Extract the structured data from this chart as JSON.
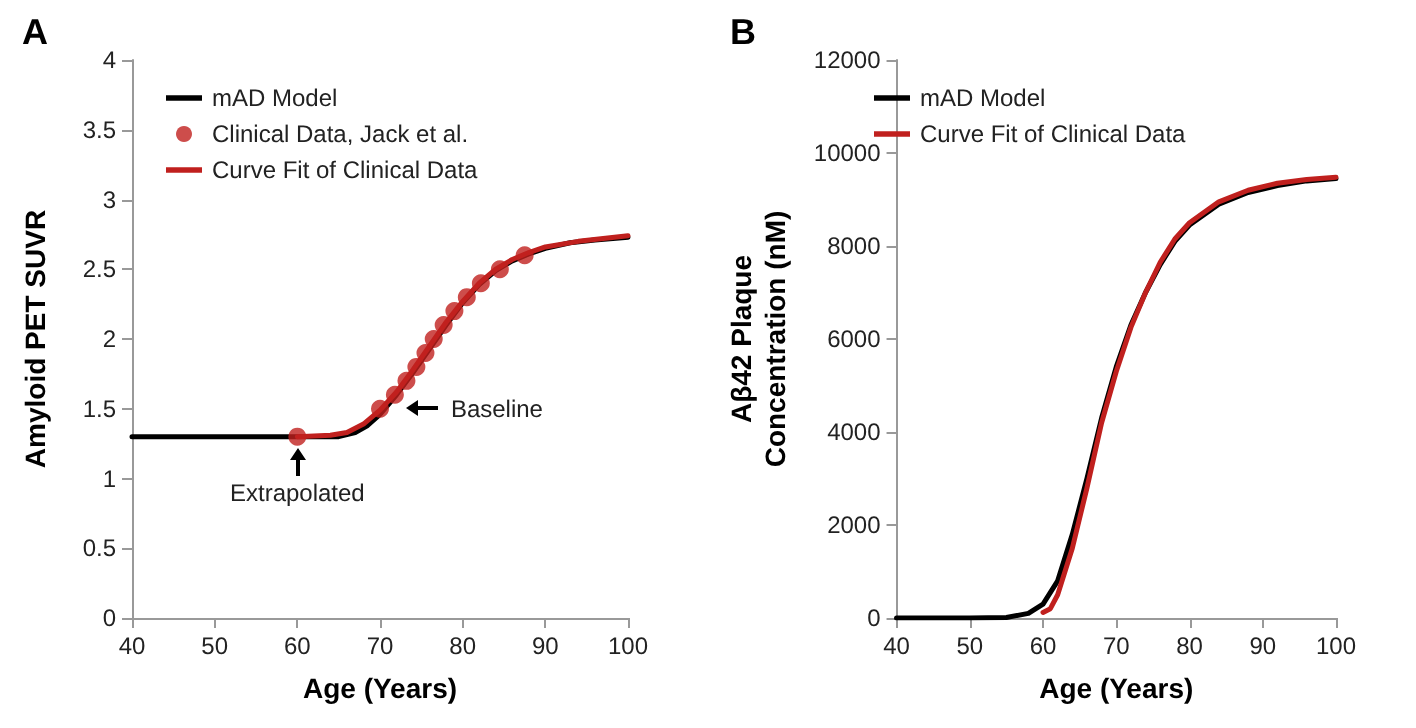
{
  "chart_data": [
    {
      "type": "line",
      "title": "A",
      "xlabel": "Age (Years)",
      "ylabel": "Amyloid PET SUVR",
      "xlim": [
        40,
        100
      ],
      "xticks": [
        40,
        50,
        60,
        70,
        80,
        90,
        100
      ],
      "ylim": [
        0,
        4
      ],
      "yticks": [
        0,
        0.5,
        1,
        1.5,
        2,
        2.5,
        3,
        3.5,
        4
      ],
      "grid": false,
      "legend": "top left",
      "marker": "none",
      "line_style": "solid",
      "series": [
        {
          "name": "mAD Model",
          "color": "#000000",
          "x": [
            40,
            50,
            60,
            65,
            67,
            68.5,
            70,
            72,
            74,
            76,
            78,
            80,
            82,
            84,
            86,
            88,
            90,
            93,
            96,
            100
          ],
          "values": [
            1.3,
            1.3,
            1.3,
            1.3,
            1.33,
            1.38,
            1.46,
            1.6,
            1.76,
            1.93,
            2.1,
            2.26,
            2.39,
            2.49,
            2.56,
            2.61,
            2.65,
            2.69,
            2.71,
            2.73
          ]
        },
        {
          "name": "Clinical Data, Jack et al.",
          "type": "scatter",
          "marker": "circle",
          "color": "#c0201e",
          "x": [
            60,
            70,
            71.8,
            73.2,
            74.4,
            75.5,
            76.5,
            77.7,
            79,
            80.5,
            82.2,
            84.5,
            87.5
          ],
          "values": [
            1.3,
            1.5,
            1.6,
            1.7,
            1.8,
            1.9,
            2.0,
            2.1,
            2.2,
            2.3,
            2.4,
            2.5,
            2.6
          ]
        },
        {
          "name": "Curve Fit of Clinical Data",
          "color": "#c0201e",
          "x": [
            60,
            64,
            66,
            68,
            70,
            72,
            74,
            76,
            78,
            80,
            82,
            84,
            86,
            88,
            90,
            94,
            100
          ],
          "values": [
            1.3,
            1.31,
            1.33,
            1.39,
            1.49,
            1.62,
            1.78,
            1.95,
            2.12,
            2.27,
            2.4,
            2.5,
            2.57,
            2.62,
            2.66,
            2.7,
            2.74
          ]
        }
      ],
      "annotations": [
        {
          "text": "Extrapolated",
          "x": 60,
          "y": 1.3
        },
        {
          "text": "Baseline",
          "x": 71.8,
          "y": 1.5
        }
      ]
    },
    {
      "type": "line",
      "title": "B",
      "xlabel": "Age (Years)",
      "ylabel": "Aβ42 Plaque\nConcentration (nM)",
      "xlim": [
        40,
        100
      ],
      "xticks": [
        40,
        50,
        60,
        70,
        80,
        90,
        100
      ],
      "ylim": [
        0,
        12000
      ],
      "yticks": [
        0,
        2000,
        4000,
        6000,
        8000,
        10000,
        12000
      ],
      "grid": false,
      "legend": "top left",
      "marker": "none",
      "line_style": "solid",
      "series": [
        {
          "name": "mAD Model",
          "color": "#000000",
          "x": [
            40,
            50,
            55,
            58,
            60,
            62,
            64,
            66,
            68,
            70,
            72,
            74,
            76,
            78,
            80,
            84,
            88,
            92,
            96,
            100
          ],
          "values": [
            0,
            0,
            10,
            100,
            300,
            800,
            1800,
            3000,
            4300,
            5400,
            6300,
            7000,
            7600,
            8100,
            8450,
            8900,
            9150,
            9300,
            9400,
            9450
          ]
        },
        {
          "name": "Curve Fit of Clinical Data",
          "color": "#c0201e",
          "x": [
            60,
            61,
            62,
            64,
            66,
            68,
            70,
            72,
            74,
            76,
            78,
            80,
            84,
            88,
            92,
            96,
            100
          ],
          "values": [
            120,
            200,
            500,
            1500,
            2800,
            4200,
            5300,
            6250,
            7000,
            7650,
            8150,
            8500,
            8950,
            9200,
            9350,
            9430,
            9480
          ]
        }
      ]
    }
  ]
}
